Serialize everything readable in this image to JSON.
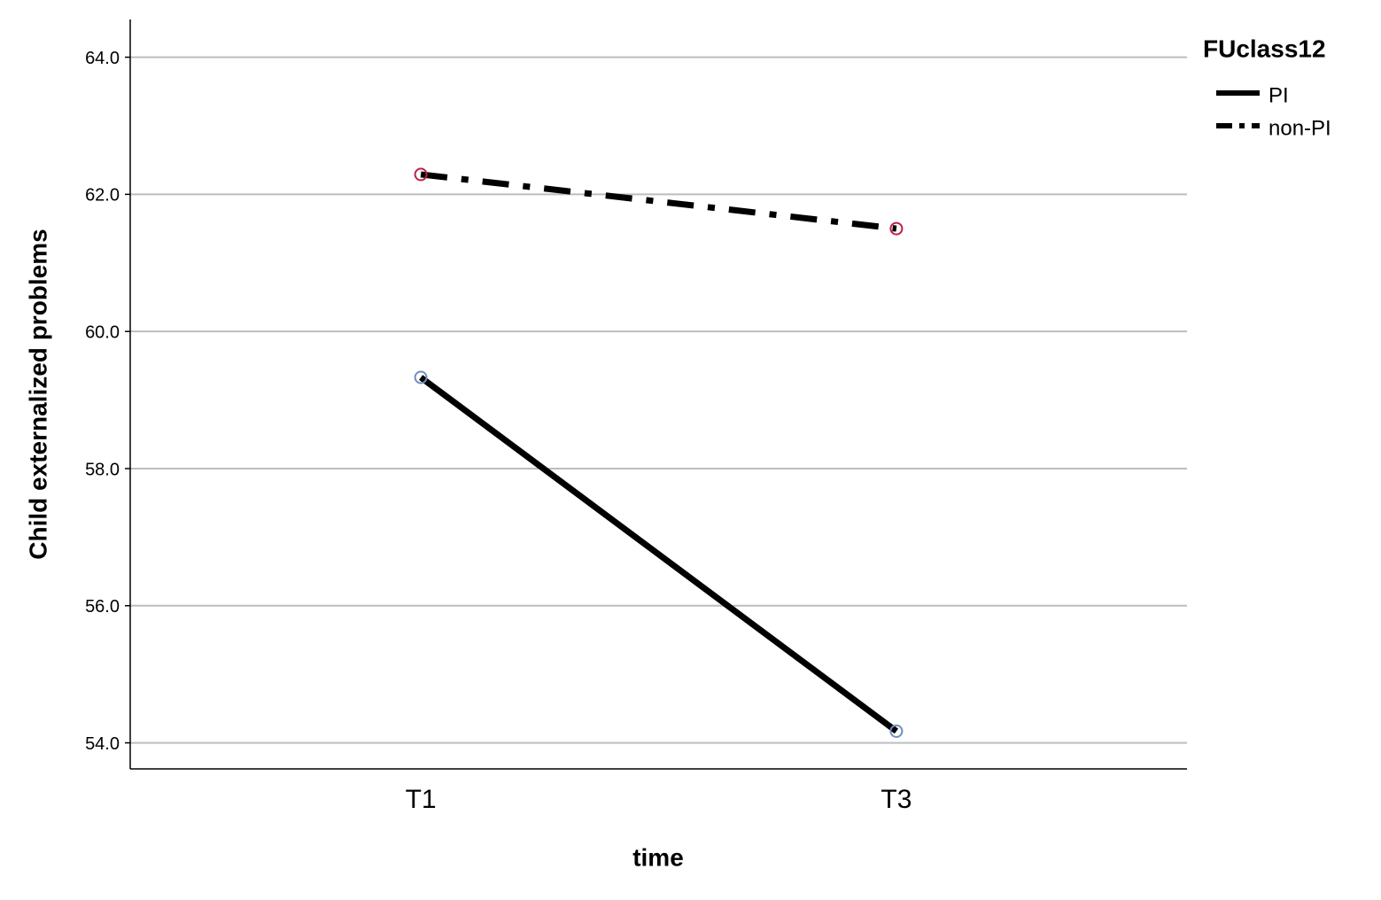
{
  "chart_data": {
    "type": "line",
    "x_label": "time",
    "y_label": "Child externalized problems",
    "legend_title": "FUclass12",
    "legend_position": "top-right-outside",
    "categories": [
      "T1",
      "T3"
    ],
    "series": [
      {
        "name": "PI",
        "color": "#000000",
        "marker_color": "#6f8fbf",
        "dash": "solid",
        "values": [
          59.33,
          54.17
        ]
      },
      {
        "name": "non-PI",
        "color": "#000000",
        "marker_color": "#c0204a",
        "dash": "dashdot",
        "values": [
          62.29,
          61.5
        ]
      }
    ],
    "ylim": [
      53.62,
      64.55
    ],
    "yticks": [
      {
        "value": 54,
        "label": "54.0"
      },
      {
        "value": 56,
        "label": "56.0"
      },
      {
        "value": 58,
        "label": "58.0"
      },
      {
        "value": 60,
        "label": "60.0"
      },
      {
        "value": 62,
        "label": "62.0"
      },
      {
        "value": 64,
        "label": "64.0"
      }
    ],
    "grid": true
  }
}
